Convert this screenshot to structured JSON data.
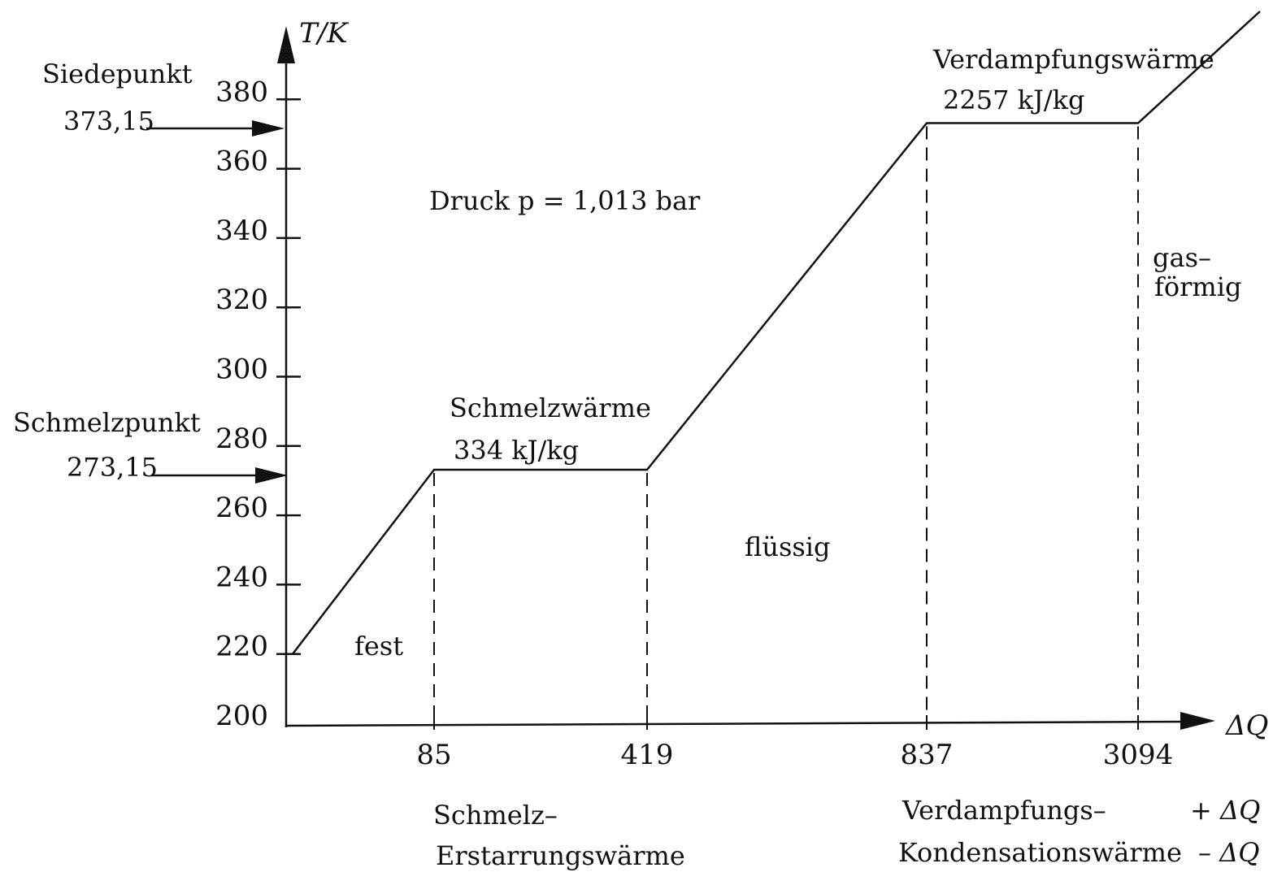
{
  "chart_data": {
    "type": "line",
    "y_axis_label": "T/K",
    "x_axis_label": "ΔQ",
    "y_ticks": [
      200,
      220,
      240,
      260,
      280,
      300,
      320,
      340,
      360,
      380
    ],
    "ylim": [
      200,
      390
    ],
    "x_ticks": [
      "85",
      "419",
      "837",
      "3094"
    ],
    "series": [
      {
        "points": [
          {
            "q": "0",
            "t": 220
          },
          {
            "q": "85",
            "t": 273.15
          },
          {
            "q": "419",
            "t": 273.15
          },
          {
            "q": "837",
            "t": 373.15
          },
          {
            "q": "3094",
            "t": 373.15
          }
        ]
      }
    ],
    "annotations": {
      "boiling_label": "Siedepunkt",
      "boiling_value": "373,15",
      "melting_label": "Schmelzpunkt",
      "melting_value": "273,15",
      "pressure": "Druck p = 1,013 bar",
      "fusion_heat_label": "Schmelzwärme",
      "fusion_heat_value": "334 kJ/kg",
      "vaporization_heat_label": "Verdampfungswärme",
      "vaporization_heat_value": "2257 kJ/kg",
      "solid": "fest",
      "liquid": "flüssig",
      "gas_line1": "gas–",
      "gas_line2": "förmig",
      "fusion_bottom_line1": "Schmelz–",
      "fusion_bottom_line2": "Erstarrungswärme",
      "vapor_bottom_line1": "Verdampfungs–",
      "vapor_bottom_line2": "Kondensationswärme",
      "plus_dq": "+ ΔQ",
      "minus_dq": "– ΔQ"
    }
  }
}
